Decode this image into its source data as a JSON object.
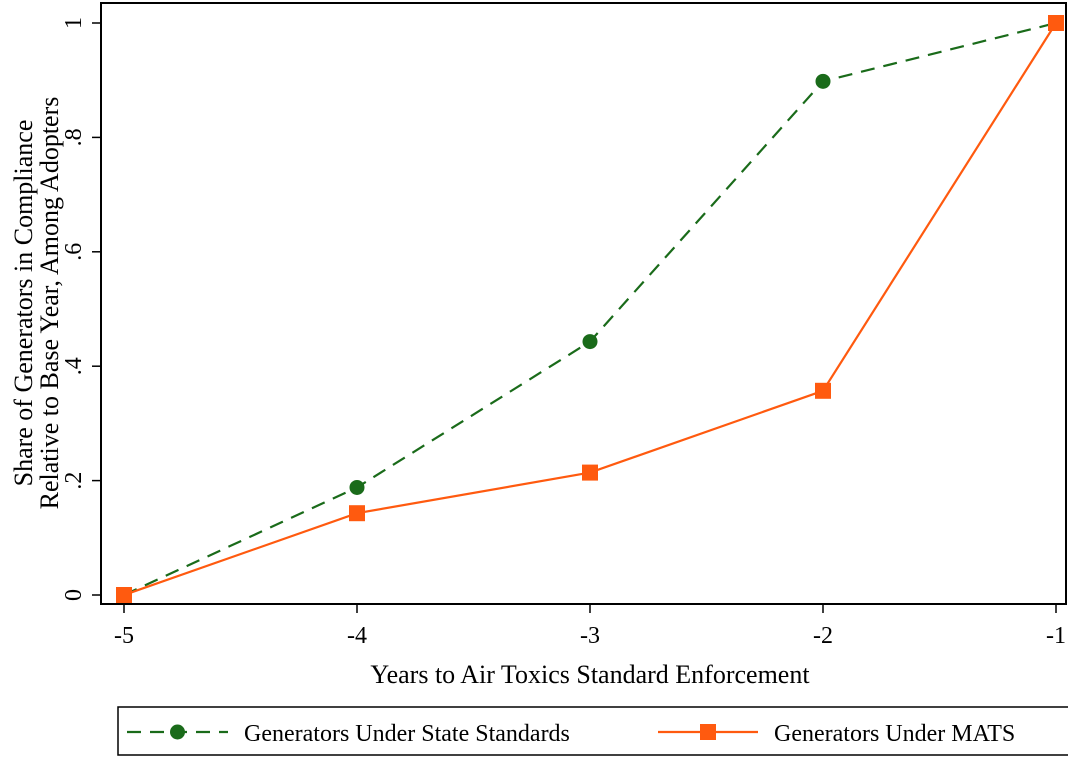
{
  "chart_data": {
    "type": "line",
    "title": "",
    "xlabel": "Years to Air Toxics Standard Enforcement",
    "ylabel_lines": [
      "Share of Generators in Compliance",
      "Relative to Base Year, Among Adopters"
    ],
    "xlim": [
      -5,
      -1
    ],
    "ylim": [
      0,
      1
    ],
    "x_ticks": [
      -5,
      -4,
      -3,
      -2,
      -1
    ],
    "x_tick_labels": [
      "-5",
      "-4",
      "-3",
      "-2",
      "-1"
    ],
    "y_ticks": [
      0,
      0.2,
      0.4,
      0.6,
      0.8,
      1
    ],
    "y_tick_labels": [
      "0",
      ".2",
      ".4",
      ".6",
      ".8",
      "1"
    ],
    "grid": false,
    "legend_position": "bottom",
    "series": [
      {
        "name": "Generators Under State Standards",
        "x": [
          -5,
          -4,
          -3,
          -2,
          -1
        ],
        "values": [
          0,
          0.188,
          0.443,
          0.898,
          1.0
        ],
        "color": "#1a6b1a",
        "line_style": "dashed",
        "marker": "circle"
      },
      {
        "name": "Generators Under MATS",
        "x": [
          -5,
          -4,
          -3,
          -2,
          -1
        ],
        "values": [
          0,
          0.143,
          0.214,
          0.357,
          1.0
        ],
        "color": "#ff5a0f",
        "line_style": "solid",
        "marker": "square"
      }
    ]
  }
}
